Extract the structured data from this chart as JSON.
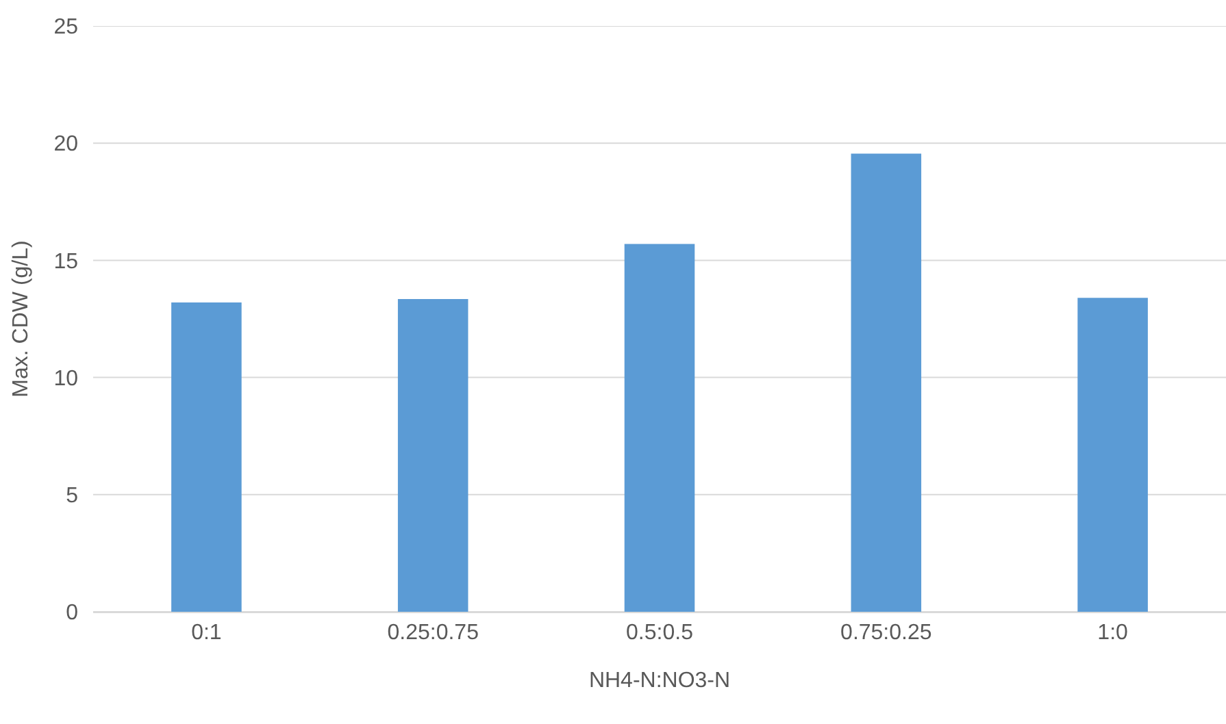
{
  "chart_data": {
    "type": "bar",
    "xlabel": "NH4-N:NO3-N",
    "ylabel": "Max. CDW (g/L)",
    "categories": [
      "0:1",
      "0.25:0.75",
      "0.5:0.5",
      "0.75:0.25",
      "1:0"
    ],
    "values": [
      13.2,
      13.35,
      15.7,
      19.55,
      13.4
    ],
    "color": "#5b9bd5",
    "ylim": [
      0,
      25
    ],
    "yticks": [
      0,
      5,
      10,
      15,
      20,
      25
    ],
    "grid": "y"
  }
}
